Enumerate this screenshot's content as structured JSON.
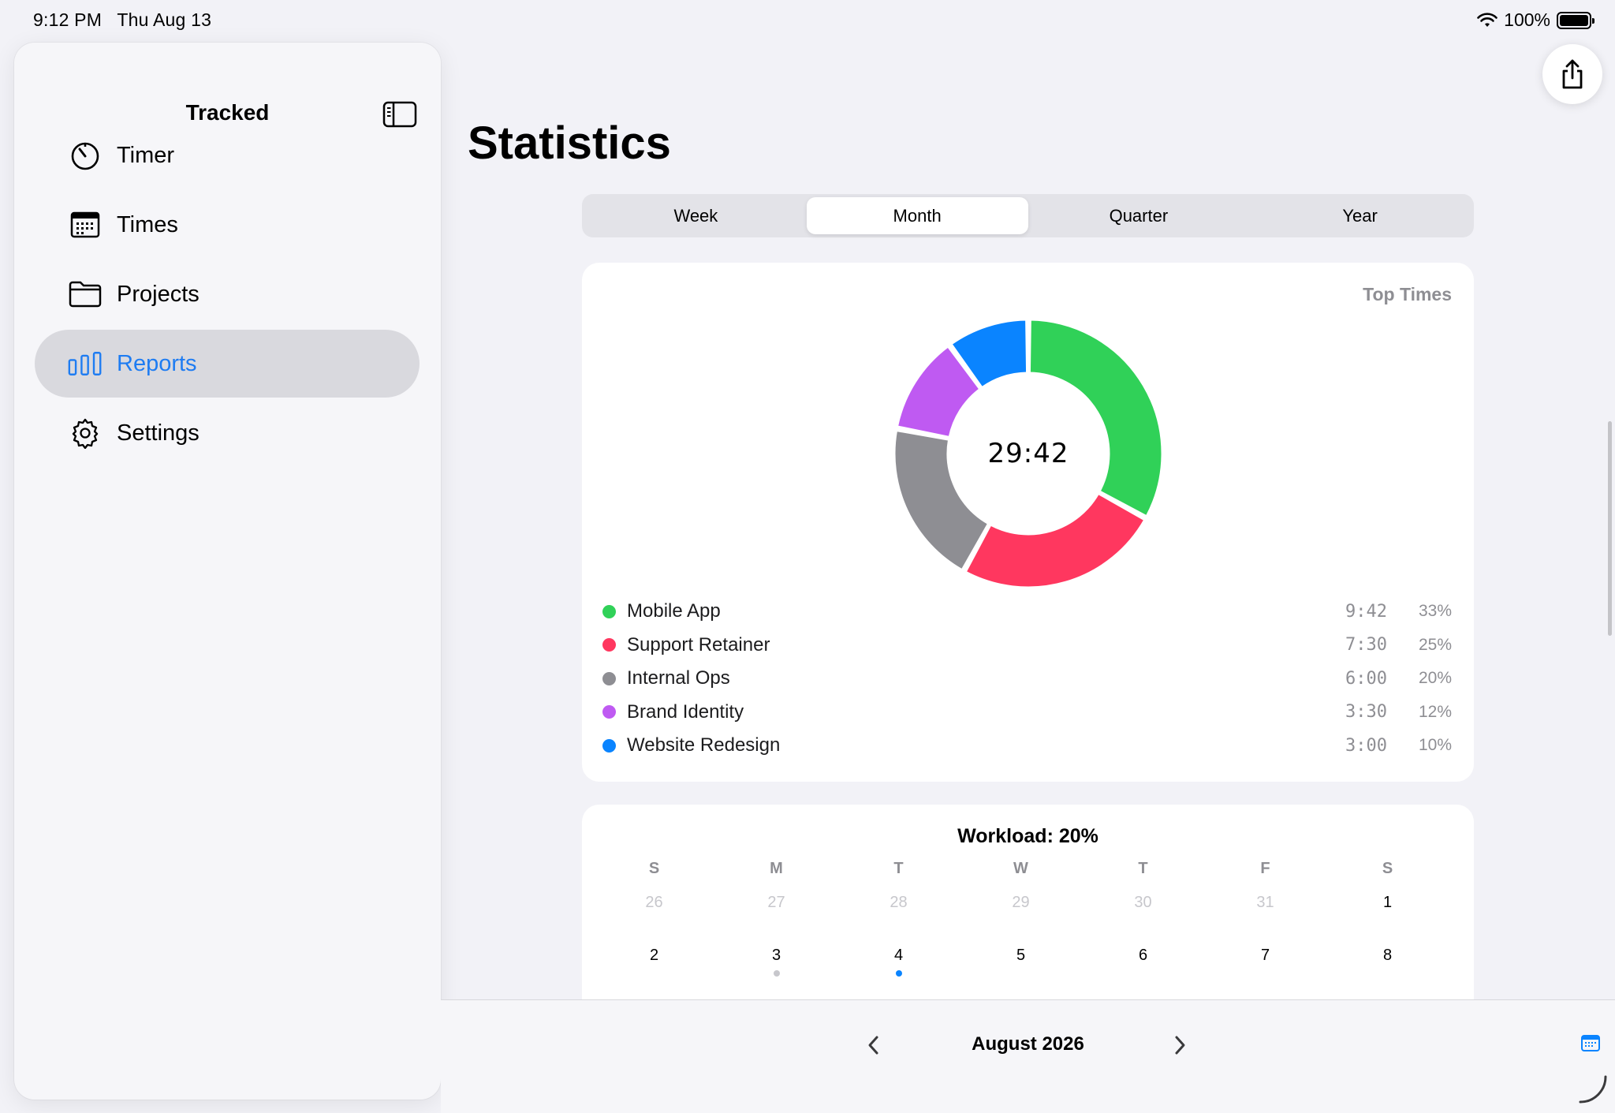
{
  "status": {
    "time": "9:12 PM",
    "date": "Thu Aug 13",
    "battery": "100%"
  },
  "sidebar": {
    "title": "Tracked",
    "items": [
      {
        "label": "Timer",
        "icon": "timer-icon"
      },
      {
        "label": "Times",
        "icon": "calendar-icon"
      },
      {
        "label": "Projects",
        "icon": "folder-icon"
      },
      {
        "label": "Reports",
        "icon": "bar-chart-icon",
        "active": true
      },
      {
        "label": "Settings",
        "icon": "gear-icon"
      }
    ]
  },
  "main": {
    "title": "Statistics",
    "segments": [
      "Week",
      "Month",
      "Quarter",
      "Year"
    ],
    "selected_segment": "Month"
  },
  "top_times": {
    "title": "Top Times",
    "total": "29:42"
  },
  "chart_data": {
    "type": "pie",
    "title": "Top Times",
    "center_label": "29:42",
    "categories": [
      "Mobile App",
      "Support Retainer",
      "Internal Ops",
      "Brand Identity",
      "Website Redesign"
    ],
    "times": [
      "9:42",
      "7:30",
      "6:00",
      "3:30",
      "3:00"
    ],
    "percents": [
      "33%",
      "25%",
      "20%",
      "12%",
      "10%"
    ],
    "values": [
      33,
      25,
      20,
      12,
      10
    ],
    "colors": [
      "#30d158",
      "#ff375f",
      "#8e8e93",
      "#bf5af2",
      "#0a84ff"
    ]
  },
  "calendar": {
    "workload": "Workload: 20%",
    "weekdays": [
      "S",
      "M",
      "T",
      "W",
      "T",
      "F",
      "S"
    ],
    "week1": [
      {
        "d": "26",
        "muted": true
      },
      {
        "d": "27",
        "muted": true
      },
      {
        "d": "28",
        "muted": true
      },
      {
        "d": "29",
        "muted": true
      },
      {
        "d": "30",
        "muted": true
      },
      {
        "d": "31",
        "muted": true
      },
      {
        "d": "1",
        "muted": false
      }
    ],
    "week2": [
      {
        "d": "2"
      },
      {
        "d": "3",
        "mark": "#c7c7cc"
      },
      {
        "d": "4",
        "mark": "#0a84ff"
      },
      {
        "d": "5"
      },
      {
        "d": "6"
      },
      {
        "d": "7"
      },
      {
        "d": "8"
      }
    ],
    "month_label": "August 2026"
  }
}
